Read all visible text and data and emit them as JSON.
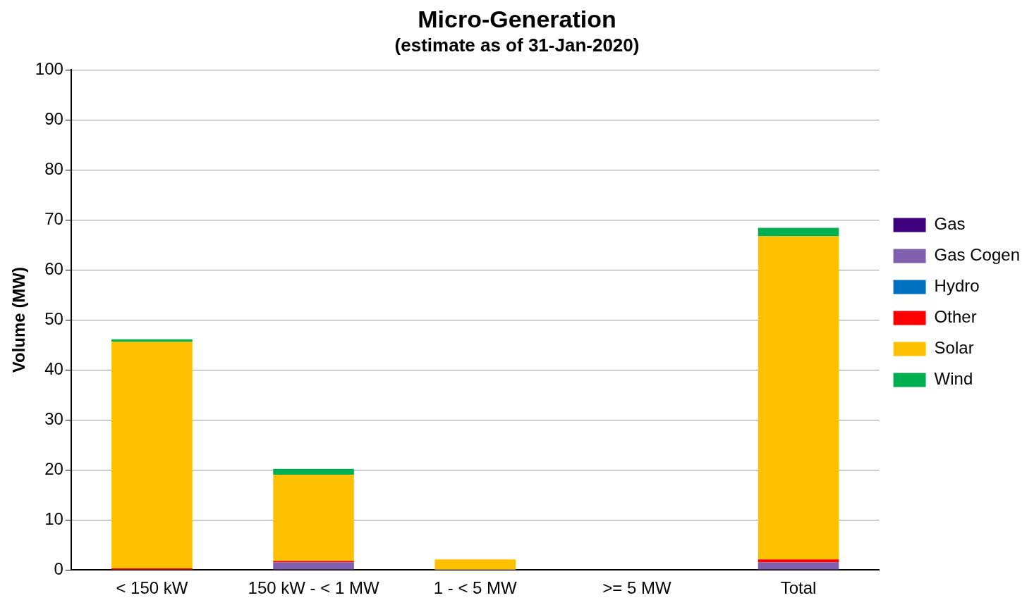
{
  "chart_data": {
    "type": "bar",
    "title": "Micro-Generation",
    "subtitle": "(estimate as of 31-Jan-2020)",
    "ylabel": "Volume (MW)",
    "categories": [
      "< 150 kW",
      "150 kW - < 1 MW",
      "1 - < 5 MW",
      ">= 5 MW",
      "Total"
    ],
    "stacked": true,
    "legend": "right",
    "grid": "y",
    "ylim": [
      0,
      100
    ],
    "yticks": [
      0,
      10,
      20,
      30,
      40,
      50,
      60,
      70,
      80,
      90,
      100
    ],
    "series": [
      {
        "name": "Gas",
        "color": "#3f007d",
        "values": [
          0,
          0.1,
          0,
          0,
          0.1
        ]
      },
      {
        "name": "Gas Cogen",
        "color": "#7f5fae",
        "values": [
          0,
          1.4,
          0,
          0,
          1.4
        ]
      },
      {
        "name": "Hydro",
        "color": "#0070c0",
        "values": [
          0,
          0,
          0,
          0,
          0
        ]
      },
      {
        "name": "Other",
        "color": "#ff0000",
        "values": [
          0.3,
          0.3,
          0,
          0,
          0.6
        ]
      },
      {
        "name": "Solar",
        "color": "#ffc000",
        "values": [
          45.3,
          17.2,
          2.1,
          0,
          64.6
        ]
      },
      {
        "name": "Wind",
        "color": "#00b050",
        "values": [
          0.5,
          1.2,
          0,
          0,
          1.7
        ]
      }
    ]
  }
}
